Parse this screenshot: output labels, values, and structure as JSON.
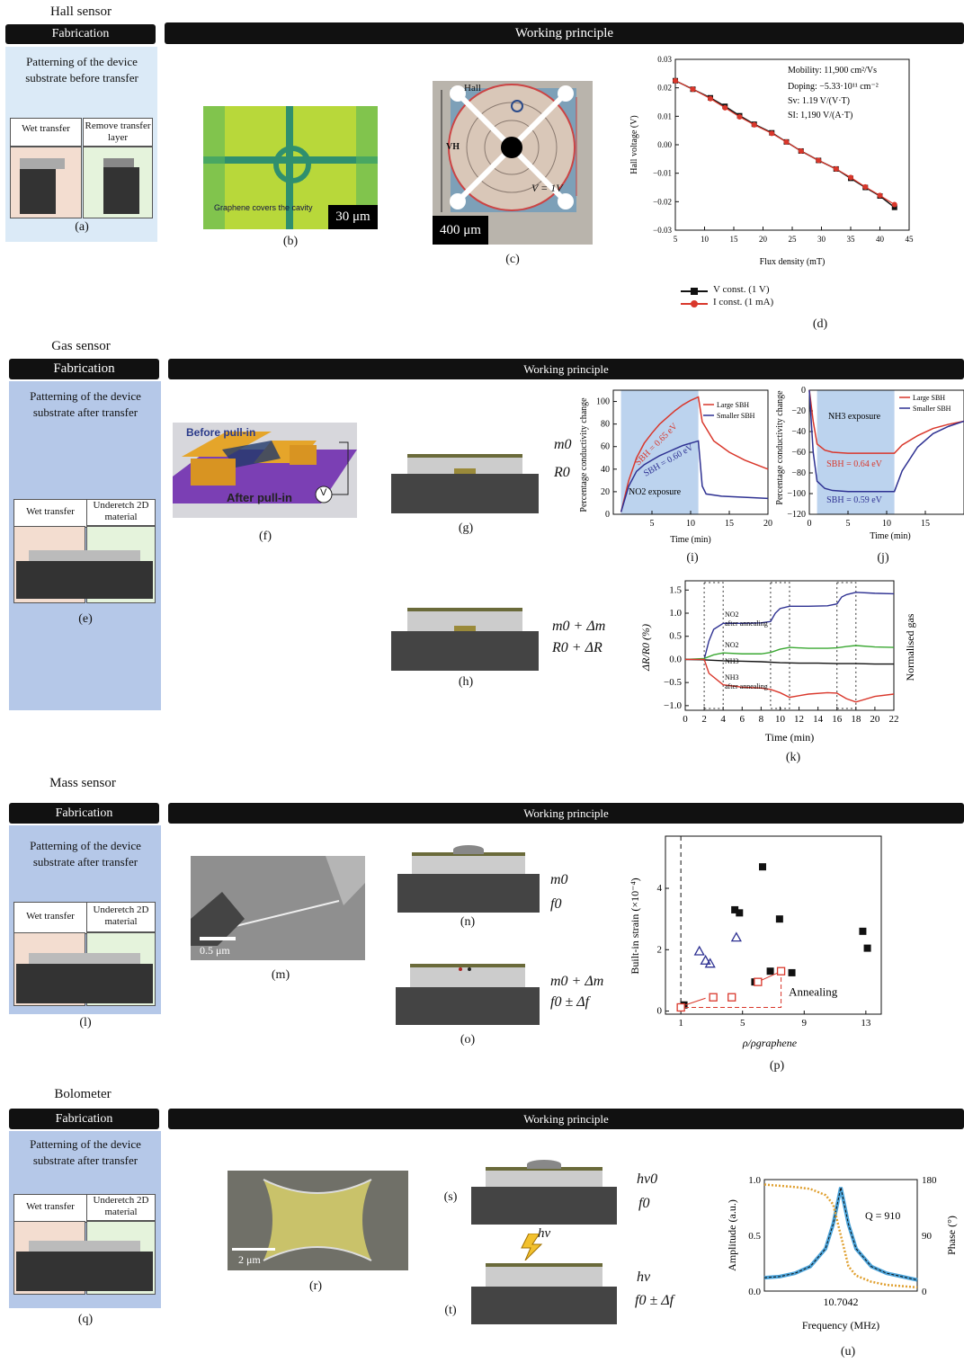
{
  "sections": {
    "hall": "Hall sensor",
    "gas": "Gas sensor",
    "mass": "Mass sensor",
    "bolo": "Bolometer"
  },
  "bars": {
    "fabrication": "Fabrication",
    "working": "Working principle"
  },
  "hall": {
    "panel_text": "Patterning of the device substrate before transfer",
    "wet": "Wet transfer",
    "remove": "Remove transfer layer",
    "labels": {
      "a": "(a)",
      "b": "(b)",
      "c": "(c)",
      "d": "(d)"
    },
    "b_caption": "Graphene covers the cavity",
    "b_scale": "30 μm",
    "c_hall": "Hall",
    "c_vh": "VH",
    "c_v": "V = 1V",
    "c_scale": "400 μm",
    "chart_text": {
      "mobility": "Mobility: 11,900 cm²/Vs",
      "doping": "Doping: −5.33·10¹¹ cm⁻²",
      "sv": "Sv: 1.19 V/(V·T)",
      "si": "SI: 1,190 V/(A·T)",
      "xlabel": "Flux density (mT)",
      "ylabel": "Hall voltage (V)"
    },
    "legend": [
      "V const. (1 V)",
      "I const. (1 mA)"
    ]
  },
  "gas": {
    "panel_text": "Patterning of the device substrate after transfer",
    "wet": "Wet transfer",
    "underetch": "Underetch 2D material",
    "labels": {
      "e": "(e)",
      "f": "(f)",
      "g": "(g)",
      "h": "(h)",
      "i": "(i)",
      "j": "(j)",
      "k": "(k)"
    },
    "f_before": "Before pull-in",
    "f_after": "After pull-in",
    "f_v": "V",
    "g_m": "m0",
    "g_r": "R0",
    "h_m": "m0 + Δm",
    "h_r": "R0 + ΔR",
    "i_text": {
      "ylabel": "Percentage conductivity change",
      "xlabel": "Time (min)",
      "large": "Large SBH",
      "smaller": "Smaller SBH",
      "sbh1": "SBH = 0.65 eV",
      "sbh2": "SBH = 0.60 eV",
      "no2": "NO2 exposure"
    },
    "j_text": {
      "xlabel": "Time (min)",
      "large": "Large SBH",
      "smaller": "Smaller SBH",
      "nh3": "NH3 exposure",
      "sbh1": "SBH = 0.64 eV",
      "sbh2": "SBH = 0.59 eV"
    },
    "k_text": {
      "ylabel": "ΔR/R0 (%)",
      "xlabel": "Time (min)",
      "right": "Normalised gas",
      "l1": "NO2 after annealing",
      "l2": "NO2",
      "l3": "NH3",
      "l4": "NH3 after annealing"
    }
  },
  "mass": {
    "panel_text": "Patterning of the device substrate after transfer",
    "wet": "Wet transfer",
    "underetch": "Underetch 2D material",
    "labels": {
      "l": "(l)",
      "m": "(m)",
      "n": "(n)",
      "o": "(o)",
      "p": "(p)"
    },
    "m_scale": "0.5 μm",
    "n_m": "m0",
    "n_f": "f0",
    "o_m": "m0 + Δm",
    "o_f": "f0 ± Δf",
    "p_text": {
      "ylabel": "Built-in strain (×10⁻⁴)",
      "xlabel": "ρ/ρgraphene",
      "annealing": "Annealing"
    }
  },
  "bolo": {
    "panel_text": "Patterning of the device substrate after transfer",
    "wet": "Wet transfer",
    "underetch": "Underetch 2D material",
    "labels": {
      "q": "(q)",
      "r": "(r)",
      "s": "(s)",
      "t": "(t)",
      "u": "(u)"
    },
    "r_scale": "2 μm",
    "hv": "hν",
    "s_hv": "hν0",
    "s_f": "f0",
    "t_hv": "hν",
    "t_f": "f0 ± Δf",
    "u_text": {
      "ylabel": "Amplitude (a.u.)",
      "ylabel2": "Phase (°)",
      "xlabel": "Frequency (MHz)",
      "q": "Q = 910",
      "xtick": "10.7042"
    }
  },
  "chart_data": [
    {
      "type": "line",
      "id": "d",
      "title": "",
      "xlabel": "Flux density (mT)",
      "ylabel": "Hall voltage (V)",
      "xlim": [
        5,
        45
      ],
      "ylim": [
        -0.03,
        0.03
      ],
      "xticks": [
        5,
        10,
        15,
        20,
        25,
        30,
        35,
        40,
        45
      ],
      "yticks": [
        0.03,
        0.02,
        0.01,
        0.0,
        -0.01,
        -0.02,
        -0.03
      ],
      "series": [
        {
          "name": "V const. (1 V)",
          "color": "#111111",
          "x": [
            5,
            8,
            11,
            13.5,
            16,
            18.5,
            21.5,
            24,
            26.5,
            29.5,
            32.5,
            35,
            37.5,
            40,
            42.5
          ],
          "y": [
            0.0225,
            0.0195,
            0.0165,
            0.0135,
            0.0102,
            0.0072,
            0.0042,
            0.001,
            -0.0022,
            -0.0055,
            -0.0085,
            -0.0118,
            -0.015,
            -0.018,
            -0.022
          ]
        },
        {
          "name": "I const. (1 mA)",
          "color": "#d9372b",
          "x": [
            5,
            8,
            11,
            13.5,
            16,
            18.5,
            21.5,
            24,
            26.5,
            29.5,
            32.5,
            35,
            37.5,
            40,
            42.5
          ],
          "y": [
            0.0225,
            0.0195,
            0.0162,
            0.013,
            0.0098,
            0.007,
            0.004,
            0.001,
            -0.0022,
            -0.0055,
            -0.0085,
            -0.0115,
            -0.0148,
            -0.0178,
            -0.021
          ]
        }
      ]
    },
    {
      "type": "line",
      "id": "i",
      "xlim": [
        0,
        20
      ],
      "ylim": [
        0,
        110
      ],
      "xticks": [
        5,
        10,
        15,
        20
      ],
      "yticks": [
        0,
        20,
        40,
        60,
        80,
        100
      ],
      "series": [
        {
          "name": "Large SBH",
          "color": "#d9372b",
          "x": [
            1,
            2,
            3,
            4,
            5,
            6,
            7,
            8,
            9,
            10,
            11,
            11.5,
            13,
            15,
            17,
            20
          ],
          "y": [
            2,
            30,
            50,
            63,
            72,
            80,
            86,
            92,
            97,
            101,
            104,
            82,
            65,
            55,
            48,
            40
          ]
        },
        {
          "name": "Smaller SBH",
          "color": "#2e3192",
          "x": [
            1,
            2,
            3,
            4,
            5,
            6,
            7,
            8,
            9,
            10,
            11,
            11.5,
            12,
            14,
            17,
            20
          ],
          "y": [
            2,
            25,
            38,
            44,
            48,
            52,
            55,
            58,
            61,
            63,
            65,
            25,
            18,
            16,
            15,
            14
          ]
        }
      ]
    },
    {
      "type": "line",
      "id": "j",
      "xlim": [
        0,
        20
      ],
      "ylim": [
        -120,
        0
      ],
      "xticks": [
        0,
        5,
        10,
        15
      ],
      "yticks": [
        0,
        -20,
        -40,
        -60,
        -80,
        -100,
        -120
      ],
      "series": [
        {
          "name": "Large SBH",
          "color": "#d9372b",
          "x": [
            0,
            0.5,
            1,
            2,
            3,
            5,
            8,
            11,
            12,
            14,
            16,
            18,
            20
          ],
          "y": [
            0,
            -30,
            -52,
            -58,
            -60,
            -61,
            -61,
            -61,
            -53,
            -44,
            -37,
            -33,
            -30
          ]
        },
        {
          "name": "Smaller SBH",
          "color": "#2e3192",
          "x": [
            0,
            0.5,
            1,
            2,
            3,
            5,
            8,
            11,
            12,
            14,
            16,
            18,
            20
          ],
          "y": [
            0,
            -60,
            -88,
            -95,
            -97,
            -98,
            -98,
            -98,
            -78,
            -55,
            -42,
            -35,
            -30
          ]
        }
      ]
    },
    {
      "type": "line",
      "id": "k",
      "xlim": [
        0,
        22
      ],
      "ylim": [
        -1.1,
        1.7
      ],
      "xticks": [
        0,
        2,
        4,
        6,
        8,
        10,
        12,
        14,
        16,
        18,
        20,
        22
      ],
      "yticks": [
        1.5,
        1.0,
        0.5,
        0.0,
        -0.5,
        -1.0
      ],
      "series": [
        {
          "name": "NO2 after annealing",
          "color": "#2e3192",
          "x": [
            0,
            2,
            2.5,
            3,
            4,
            6,
            8,
            9,
            9.5,
            10,
            11,
            13,
            15,
            16,
            16.5,
            17,
            18,
            20,
            22
          ],
          "y": [
            0,
            0,
            0.4,
            0.65,
            0.78,
            0.78,
            0.79,
            0.82,
            1.0,
            1.1,
            1.15,
            1.15,
            1.16,
            1.2,
            1.35,
            1.4,
            1.45,
            1.43,
            1.42
          ]
        },
        {
          "name": "NO2",
          "color": "#3aa832",
          "x": [
            0,
            2,
            3,
            4,
            6,
            8,
            9,
            10,
            11,
            13,
            15,
            16,
            17,
            18,
            20,
            22
          ],
          "y": [
            0,
            0.02,
            0.1,
            0.14,
            0.12,
            0.12,
            0.15,
            0.22,
            0.26,
            0.24,
            0.24,
            0.25,
            0.28,
            0.3,
            0.27,
            0.26
          ]
        },
        {
          "name": "NH3",
          "color": "#111111",
          "x": [
            0,
            2,
            4,
            6,
            8,
            10,
            12,
            14,
            16,
            18,
            20,
            22
          ],
          "y": [
            0,
            -0.01,
            -0.03,
            -0.04,
            -0.05,
            -0.07,
            -0.08,
            -0.08,
            -0.09,
            -0.09,
            -0.1,
            -0.1
          ]
        },
        {
          "name": "NH3 after annealing",
          "color": "#d9372b",
          "x": [
            0,
            2,
            2.5,
            4,
            6,
            8,
            9,
            10,
            11,
            13,
            15,
            16,
            17,
            18,
            20,
            22
          ],
          "y": [
            0,
            0,
            -0.3,
            -0.55,
            -0.6,
            -0.62,
            -0.65,
            -0.72,
            -0.82,
            -0.75,
            -0.72,
            -0.73,
            -0.85,
            -0.92,
            -0.8,
            -0.75
          ]
        }
      ]
    },
    {
      "type": "scatter",
      "id": "p",
      "xlim": [
        0,
        14
      ],
      "ylim": [
        -0.1,
        5.7
      ],
      "xticks": [
        1,
        5,
        9,
        13
      ],
      "yticks": [
        0,
        2,
        4
      ],
      "series": [
        {
          "name": "filled squares",
          "color": "#111111",
          "x": [
            1.2,
            4.5,
            4.8,
            5.8,
            6.3,
            6.8,
            7.4,
            8.2,
            12.8,
            13.1
          ],
          "y": [
            0.2,
            3.3,
            3.2,
            0.95,
            4.7,
            1.3,
            3.0,
            1.25,
            2.6,
            2.05
          ]
        },
        {
          "name": "open triangles",
          "color": "#2e3192",
          "x": [
            2.2,
            2.6,
            2.9,
            4.6
          ],
          "y": [
            1.95,
            1.65,
            1.55,
            2.4
          ]
        },
        {
          "name": "open squares",
          "color": "#d9372b",
          "x": [
            1.0,
            3.1,
            4.3,
            6.0,
            7.5
          ],
          "y": [
            0.12,
            0.45,
            0.45,
            0.95,
            1.3
          ]
        }
      ]
    },
    {
      "type": "line",
      "id": "u",
      "xlabel": "Frequency (MHz)",
      "ylabel": "Amplitude (a.u.)",
      "ylim": [
        0,
        1
      ],
      "yticks": [
        0,
        0.5,
        1.0
      ],
      "y2ticks": [
        0,
        90,
        180
      ],
      "series": [
        {
          "name": "Amplitude",
          "color": "#4ba3d9",
          "x": [
            0,
            0.1,
            0.2,
            0.3,
            0.4,
            0.45,
            0.5,
            0.55,
            0.6,
            0.7,
            0.8,
            0.9,
            1.0
          ],
          "y": [
            0.12,
            0.13,
            0.16,
            0.22,
            0.38,
            0.6,
            0.93,
            0.6,
            0.38,
            0.22,
            0.16,
            0.13,
            0.1
          ]
        },
        {
          "name": "Phase",
          "color": "#e0a030",
          "x": [
            0,
            0.1,
            0.2,
            0.3,
            0.4,
            0.45,
            0.5,
            0.55,
            0.6,
            0.7,
            0.8,
            0.9,
            1.0
          ],
          "y": [
            172,
            170,
            168,
            165,
            155,
            140,
            90,
            40,
            25,
            15,
            10,
            8,
            6
          ]
        }
      ]
    }
  ]
}
